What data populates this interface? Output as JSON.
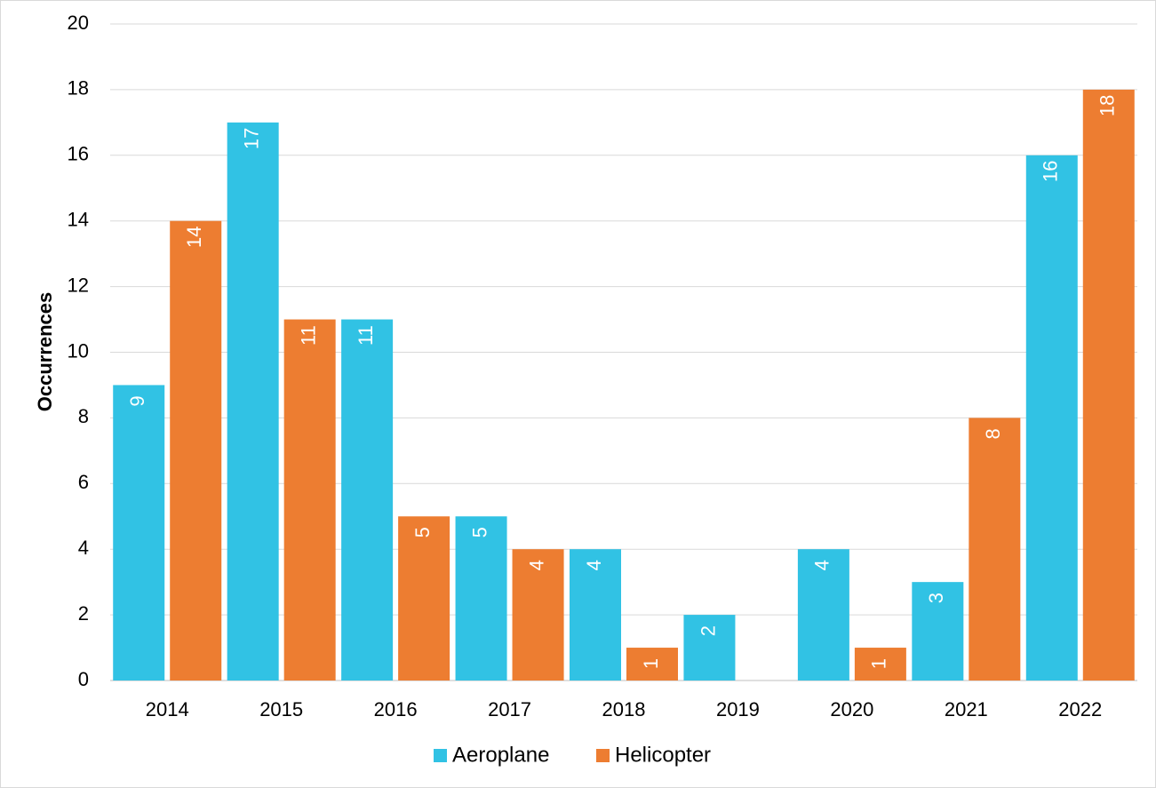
{
  "chart_data": {
    "type": "bar",
    "categories": [
      "2014",
      "2015",
      "2016",
      "2017",
      "2018",
      "2019",
      "2020",
      "2021",
      "2022"
    ],
    "series": [
      {
        "name": "Aeroplane",
        "color": "#31c2e4",
        "values": [
          9,
          17,
          11,
          5,
          4,
          2,
          4,
          3,
          16
        ]
      },
      {
        "name": "Helicopter",
        "color": "#ed7d31",
        "values": [
          14,
          11,
          5,
          4,
          1,
          0,
          1,
          8,
          18
        ]
      }
    ],
    "title": "",
    "xlabel": "",
    "ylabel": "Occurrences",
    "ylim": [
      0,
      20
    ],
    "yticks": [
      "0",
      "2",
      "4",
      "6",
      "8",
      "10",
      "12",
      "14",
      "16",
      "18",
      "20"
    ],
    "grid": true,
    "legend_position": "bottom"
  }
}
